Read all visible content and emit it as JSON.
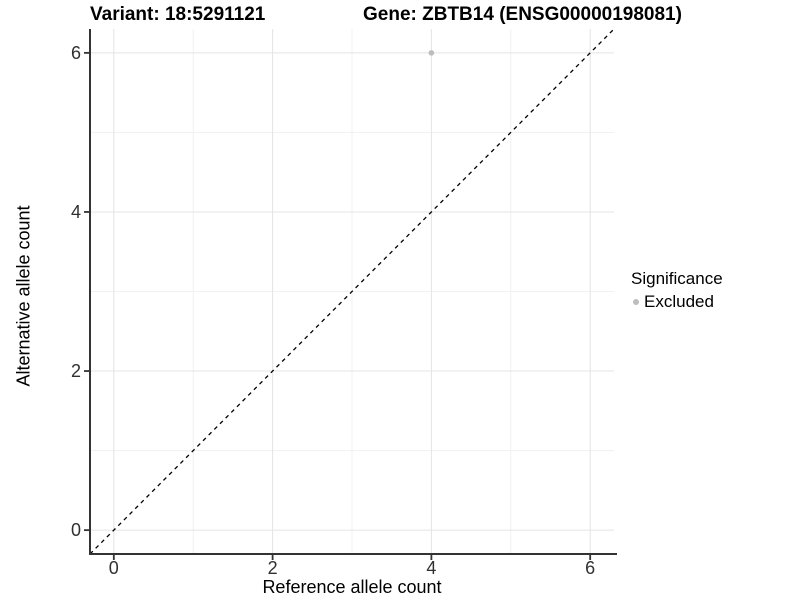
{
  "titles": {
    "variant": "Variant: 18:5291121",
    "gene": "Gene: ZBTB14 (ENSG00000198081)"
  },
  "legend": {
    "title": "Significance",
    "items": [
      {
        "label": "Excluded",
        "color": "#bdbdbd"
      }
    ]
  },
  "chart_data": {
    "type": "scatter",
    "title": "Variant: 18:5291121 — Gene: ZBTB14 (ENSG00000198081)",
    "xlabel": "Reference allele count",
    "ylabel": "Alternative allele count",
    "xlim": [
      -0.3,
      6.3
    ],
    "ylim": [
      -0.3,
      6.3
    ],
    "x_ticks": [
      0,
      2,
      4,
      6
    ],
    "y_ticks": [
      0,
      2,
      4,
      6
    ],
    "minor_gridlines": [
      1,
      3,
      5
    ],
    "grid": true,
    "legend_position": "right",
    "series": [
      {
        "name": "Excluded",
        "color": "#bdbdbd",
        "points": [
          {
            "x": 4,
            "y": 6
          }
        ]
      }
    ],
    "reference_line": {
      "type": "identity",
      "from": [
        -0.3,
        -0.3
      ],
      "to": [
        6.3,
        6.3
      ],
      "style": "dashed",
      "color": "#000000"
    }
  },
  "colors": {
    "major_grid": "#e4e4e4",
    "minor_grid": "#f1f1f1",
    "axis_line": "#333333",
    "tick_label": "#303030",
    "point": "#bdbdbd"
  }
}
